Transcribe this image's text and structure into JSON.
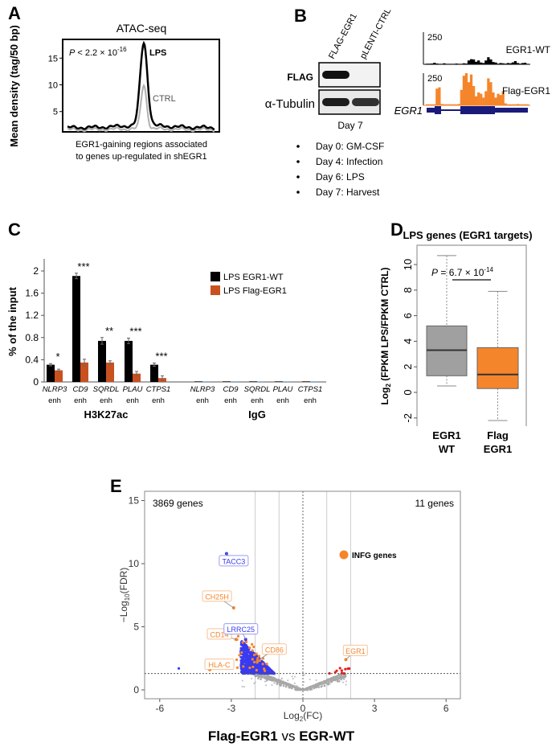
{
  "panel_labels": [
    "A",
    "B",
    "C",
    "D",
    "E"
  ],
  "colors": {
    "black": "#000000",
    "orange": "#f5852b",
    "c_orange": "#c8511f",
    "grey": "#a0a0a0",
    "blue": "#3a3af0",
    "red": "#e8201e",
    "navy": "#1a1a7a"
  },
  "chart_data": [
    {
      "panel": "A",
      "type": "line",
      "title": "ATAC-seq",
      "ylabel": "Mean density (tag/50 bp)",
      "xlabel_lines": [
        "EGR1-gaining regions associated",
        "to genes up-regulated in shEGR1"
      ],
      "yticks": [
        5,
        10,
        15
      ],
      "ylim": [
        1.2,
        18.5
      ],
      "annotation": {
        "p_prefix": "P",
        "p_text": " < 2.2 × 10",
        "p_exp": "-16"
      },
      "series": [
        {
          "name": "LPS",
          "peak": 17.5,
          "baseline": 2.0,
          "color": "#000000"
        },
        {
          "name": "CTRL",
          "peak": 9.8,
          "baseline": 1.6,
          "color": "#b0b0b0"
        }
      ]
    },
    {
      "panel": "B",
      "type": "western-blot-and-tracks",
      "lanes": [
        "FLAG-EGR1",
        "pLENTI-CTRL"
      ],
      "rows": [
        {
          "label": "FLAG",
          "intensity": [
            1.0,
            0.0
          ]
        },
        {
          "label": "α-Tubulin",
          "intensity": [
            0.95,
            0.85
          ]
        }
      ],
      "blot_caption": "Day 7",
      "timeline": [
        "Day 0: GM-CSF",
        "Day 4: Infection",
        "Day 6: LPS",
        "Day 7: Harvest"
      ],
      "tracks": [
        {
          "name": "EGR1-WT",
          "scale": "250",
          "max": 250,
          "color": "#000000",
          "values": [
            5,
            5,
            6,
            12,
            6,
            4,
            4,
            8,
            4,
            4,
            4,
            4,
            6,
            4,
            4,
            8,
            6,
            30,
            40,
            38,
            20,
            30,
            14,
            10,
            30,
            55,
            38,
            18,
            14,
            5,
            10,
            8,
            5,
            10,
            8,
            15,
            25,
            10,
            5,
            10,
            12,
            4
          ]
        },
        {
          "name": "Flag-EGR1",
          "scale": "250",
          "max": 250,
          "color": "#f5852b",
          "values": [
            8,
            8,
            8,
            8,
            130,
            140,
            10,
            8,
            8,
            8,
            8,
            8,
            8,
            10,
            120,
            230,
            250,
            180,
            240,
            150,
            70,
            100,
            90,
            60,
            110,
            210,
            180,
            100,
            60,
            90,
            80,
            110,
            15,
            8,
            8,
            8,
            8,
            10,
            8,
            8,
            8,
            8
          ]
        }
      ],
      "gene": "EGR1"
    },
    {
      "panel": "C",
      "type": "bar",
      "ylabel": "% of the input",
      "yticks": [
        "0",
        "0.4",
        "0.8",
        "1.2",
        "1.6",
        "2"
      ],
      "ylim": [
        0,
        2.2
      ],
      "groups": [
        {
          "name": "H3K27ac",
          "categories": [
            {
              "gene": "NLRP3",
              "sub": "enh",
              "wt": 0.31,
              "wt_err": 0.02,
              "flag": 0.21,
              "flag_err": 0.02,
              "sig": "*"
            },
            {
              "gene": "CD9",
              "sub": "enh",
              "wt": 1.91,
              "wt_err": 0.05,
              "flag": 0.35,
              "flag_err": 0.06,
              "sig": "***"
            },
            {
              "gene": "SQRDL",
              "sub": "enh",
              "wt": 0.74,
              "wt_err": 0.06,
              "flag": 0.35,
              "flag_err": 0.03,
              "sig": "**"
            },
            {
              "gene": "PLAU",
              "sub": "enh",
              "wt": 0.74,
              "wt_err": 0.05,
              "flag": 0.15,
              "flag_err": 0.04,
              "sig": "***"
            },
            {
              "gene": "CTPS1",
              "sub": "enh",
              "wt": 0.31,
              "wt_err": 0.03,
              "flag": 0.07,
              "flag_err": 0.04,
              "sig": "***"
            }
          ]
        },
        {
          "name": "IgG",
          "categories": [
            {
              "gene": "NLRP3",
              "sub": "enh",
              "wt": 0.01,
              "flag": 0.01
            },
            {
              "gene": "CD9",
              "sub": "enh",
              "wt": 0.01,
              "flag": 0.01
            },
            {
              "gene": "SQRDL",
              "sub": "enh",
              "wt": 0.01,
              "flag": 0.01
            },
            {
              "gene": "PLAU",
              "sub": "enh",
              "wt": 0.01,
              "flag": 0.01
            },
            {
              "gene": "CTPS1",
              "sub": "enh",
              "wt": 0.01,
              "flag": 0.01
            }
          ]
        }
      ],
      "legend": [
        {
          "name": "LPS EGR1-WT",
          "color": "#000000"
        },
        {
          "name": "LPS Flag-EGR1",
          "color": "#c8511f"
        }
      ],
      "legend_position": "top-right"
    },
    {
      "panel": "D",
      "type": "boxplot",
      "title": "LPS genes (EGR1 targets)",
      "ylabel_main": "Log",
      "ylabel_sub": "2",
      "ylabel_rest": " (FPKM LPS/FPKM CTRL)",
      "yticks": [
        -2,
        0,
        2,
        4,
        6,
        8,
        10
      ],
      "ylim": [
        -2.6,
        11.3
      ],
      "annotation": {
        "p_prefix": "P",
        "p_text": " = 6.7 × 10",
        "p_exp": "-14"
      },
      "boxes": [
        {
          "label_lines": [
            "EGR1",
            "WT"
          ],
          "min": 0.5,
          "q1": 1.3,
          "median": 3.3,
          "q3": 5.2,
          "max": 10.7,
          "color": "#a0a0a0"
        },
        {
          "label_lines": [
            "Flag",
            "EGR1"
          ],
          "min": -2.2,
          "q1": 0.3,
          "median": 1.4,
          "q3": 3.5,
          "max": 7.9,
          "color": "#f5852b"
        }
      ]
    },
    {
      "panel": "E",
      "type": "scatter",
      "title_bold_1": "Flag-EGR1",
      "title_mid": " vs ",
      "title_bold_2": "EGR-WT",
      "xlabel_main": "Log",
      "xlabel_sub": "2",
      "xlabel_rest": "(FC)",
      "ylabel_main": "−Log",
      "ylabel_sub": "10",
      "ylabel_rest": "(FDR)",
      "xlim": [
        -6.6,
        6.6
      ],
      "ylim": [
        -0.7,
        15.7
      ],
      "xticks": [
        -6,
        -3,
        0,
        3,
        6
      ],
      "yticks": [
        0,
        5,
        10,
        15
      ],
      "vlines": [
        -2,
        -1,
        1,
        2
      ],
      "vline_dashed": 0,
      "hline_dashed": 1.3,
      "count_left": "3869 genes",
      "count_right": "11 genes",
      "legend": {
        "name": "INFG genes",
        "color": "#f5852b"
      },
      "labeled_genes": [
        {
          "gene": "TACC3",
          "x": -3.2,
          "y": 10.8,
          "color": "#3a3af0"
        },
        {
          "gene": "CH25H",
          "x": -2.9,
          "y": 6.5,
          "color": "#f5852b"
        },
        {
          "gene": "CD14",
          "x": -2.8,
          "y": 4.0,
          "color": "#f5852b"
        },
        {
          "gene": "LRRC25",
          "x": -2.4,
          "y": 4.0,
          "color": "#3a3af0"
        },
        {
          "gene": "CD86",
          "x": -1.9,
          "y": 2.3,
          "color": "#f5852b"
        },
        {
          "gene": "HLA-C",
          "x": -3.9,
          "y": 1.6,
          "color": "#f5852b"
        },
        {
          "gene": "EGR1",
          "x": 1.8,
          "y": 2.4,
          "color": "#f5852b"
        }
      ]
    }
  ]
}
